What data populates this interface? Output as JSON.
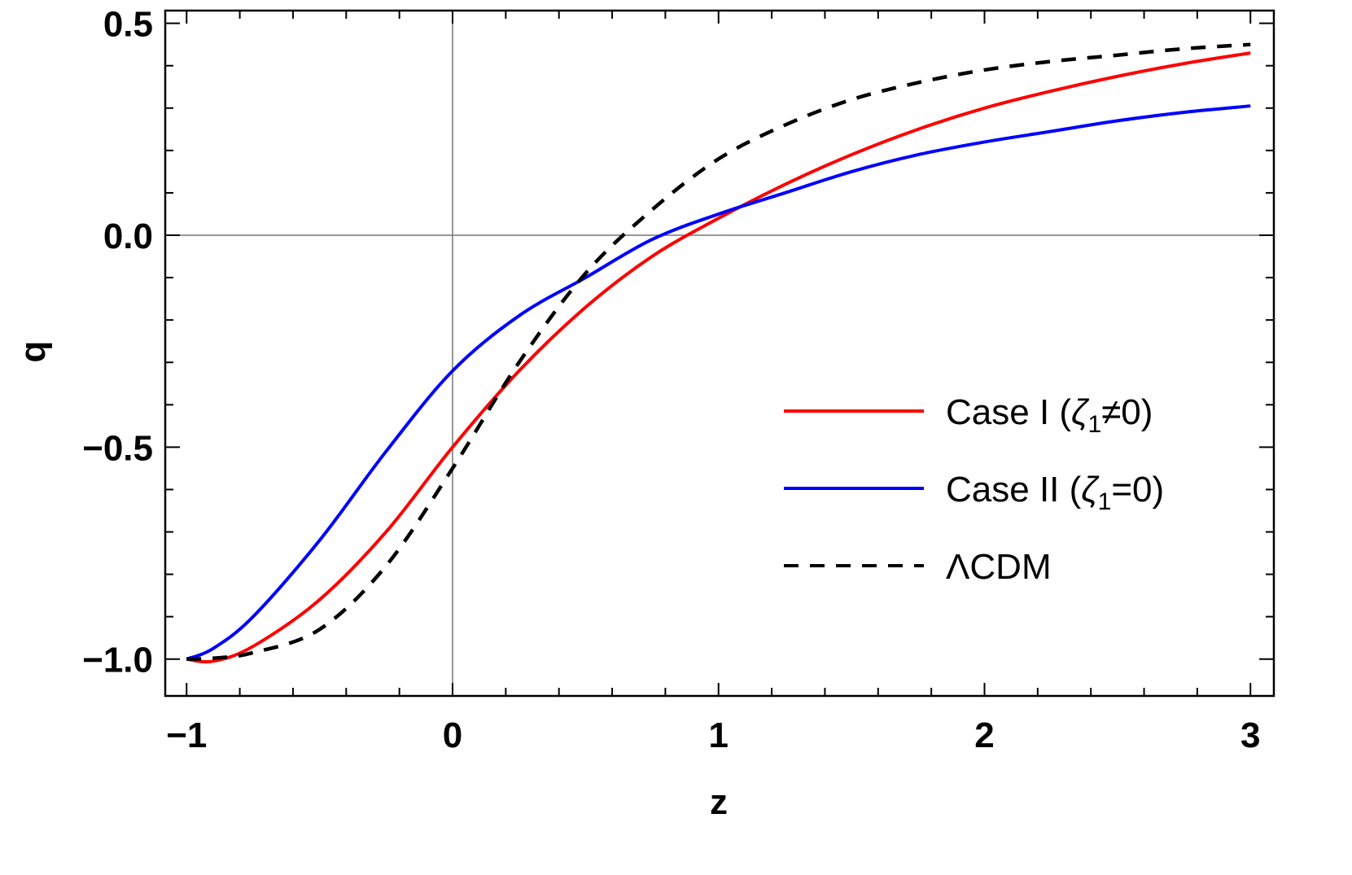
{
  "chart_data": {
    "type": "line",
    "title": "",
    "xlabel": "z",
    "ylabel": "q",
    "xlim": [
      -1.08,
      3.08
    ],
    "ylim": [
      -1.08,
      0.53
    ],
    "x_ticks": [
      -1,
      0,
      1,
      2,
      3
    ],
    "x_tick_labels": [
      "−1",
      "0",
      "1",
      "2",
      "3"
    ],
    "y_ticks": [
      0.5,
      0.0,
      -0.5,
      -1.0
    ],
    "y_tick_labels": [
      "0.5",
      "0.0",
      "−0.5",
      "−1.0"
    ],
    "grid": false,
    "axes_lines_at_zero": true,
    "legend_position": "center-right",
    "series": [
      {
        "name": "Case I (ζ₁≠0)",
        "color": "#ff0000",
        "style": "solid",
        "x": [
          -1,
          -0.9,
          -0.75,
          -0.5,
          -0.25,
          0,
          0.25,
          0.5,
          0.75,
          1,
          1.25,
          1.5,
          1.75,
          2,
          2.25,
          2.5,
          2.75,
          3
        ],
        "y": [
          -1.0,
          -1.005,
          -0.97,
          -0.86,
          -0.7,
          -0.5,
          -0.32,
          -0.17,
          -0.05,
          0.04,
          0.12,
          0.19,
          0.25,
          0.3,
          0.34,
          0.375,
          0.405,
          0.43
        ]
      },
      {
        "name": "Case II (ζ₁=0)",
        "color": "#0000ff",
        "style": "solid",
        "x": [
          -1,
          -0.9,
          -0.75,
          -0.5,
          -0.25,
          0,
          0.25,
          0.5,
          0.75,
          1,
          1.25,
          1.5,
          1.75,
          2,
          2.25,
          2.5,
          2.75,
          3
        ],
        "y": [
          -1.0,
          -0.975,
          -0.9,
          -0.72,
          -0.51,
          -0.32,
          -0.19,
          -0.1,
          -0.01,
          0.05,
          0.1,
          0.15,
          0.19,
          0.22,
          0.245,
          0.27,
          0.29,
          0.305
        ]
      },
      {
        "name": "ΛCDM",
        "color": "#000000",
        "style": "dashed",
        "x": [
          -1,
          -0.9,
          -0.75,
          -0.5,
          -0.25,
          0,
          0.25,
          0.5,
          0.75,
          1,
          1.25,
          1.5,
          1.75,
          2,
          2.25,
          2.5,
          2.75,
          3
        ],
        "y": [
          -1.0,
          -0.998,
          -0.985,
          -0.93,
          -0.78,
          -0.55,
          -0.3,
          -0.09,
          0.06,
          0.18,
          0.26,
          0.32,
          0.36,
          0.39,
          0.41,
          0.425,
          0.44,
          0.45
        ]
      }
    ]
  },
  "legend": {
    "items": [
      {
        "label_main": "Case I (",
        "label_sym": "ζ",
        "label_sub": "1",
        "label_tail": "≠0)"
      },
      {
        "label_main": "Case II (",
        "label_sym": "ζ",
        "label_sub": "1",
        "label_tail": "=0)"
      },
      {
        "label_main": "ΛCDM",
        "label_sym": "",
        "label_sub": "",
        "label_tail": ""
      }
    ]
  }
}
